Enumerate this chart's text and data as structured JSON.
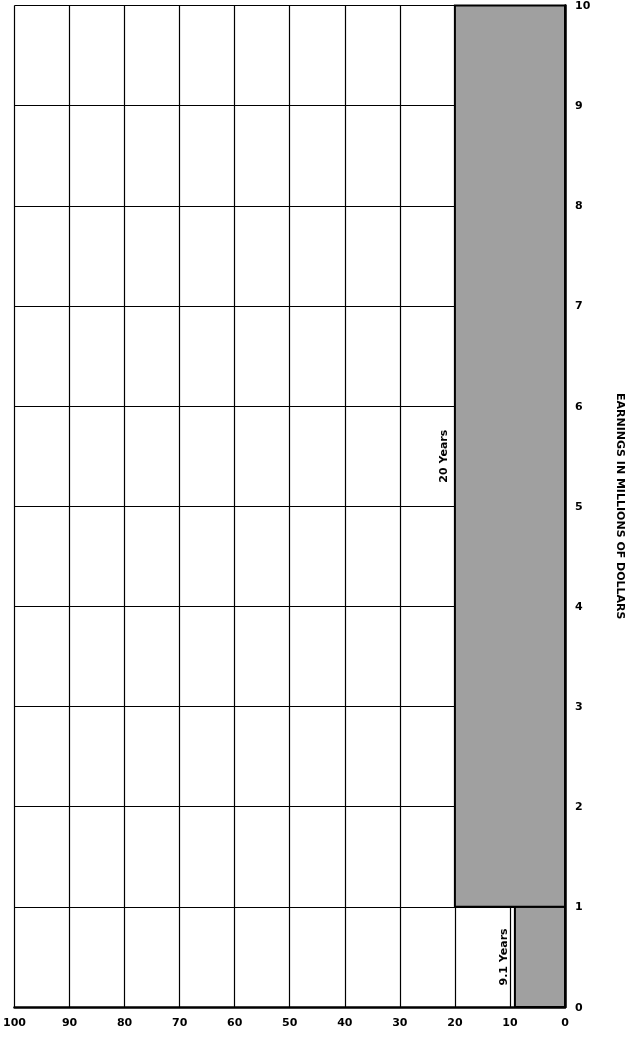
{
  "chart_data": {
    "type": "histogram",
    "orientation": "horizontal",
    "ylabel": "EARNINGS IN MILLIONS OF DOLLARS",
    "bins": [
      0,
      1,
      10
    ],
    "values": [
      9.1,
      20
    ],
    "color": "#a0a0a0",
    "xlim": [
      100,
      0
    ],
    "xticks": [
      0,
      10,
      20,
      30,
      40,
      50,
      60,
      70,
      80,
      90,
      100
    ],
    "ylim": [
      0,
      10
    ],
    "yticks": [
      0,
      1,
      2,
      3,
      4,
      5,
      6,
      7,
      8,
      9,
      10
    ],
    "grid": true,
    "annotations": [
      {
        "text": "9.1 Years",
        "x": 9.1,
        "y": 0.5
      },
      {
        "text": "20 Years",
        "x": 20,
        "y": 5.5
      }
    ]
  }
}
